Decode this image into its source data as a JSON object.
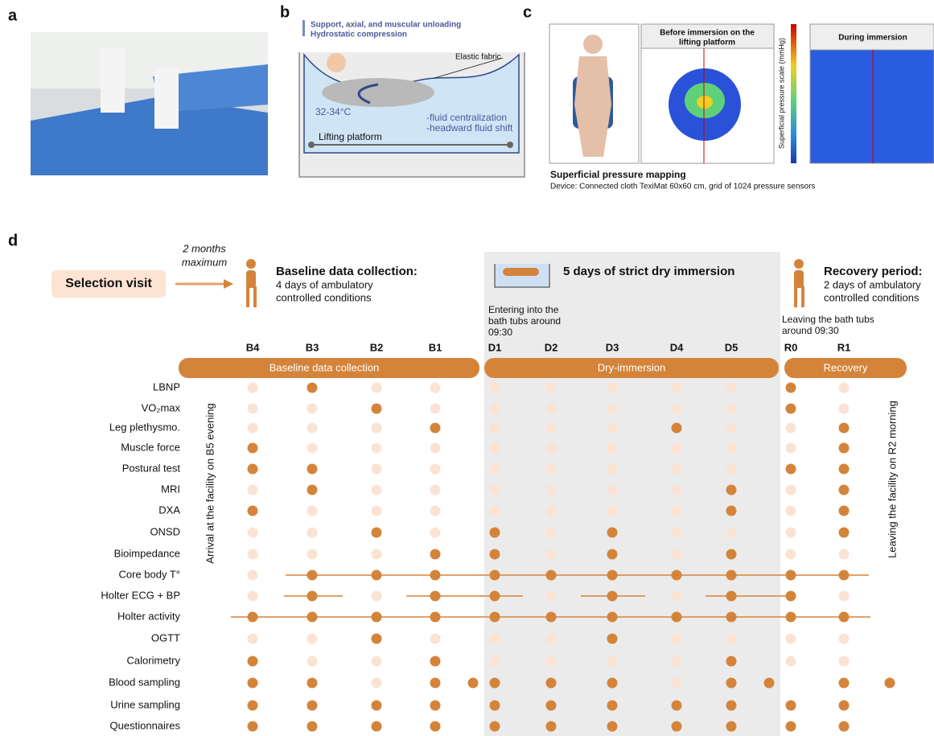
{
  "panels": {
    "a": "a",
    "b": "b",
    "c": "c",
    "d": "d"
  },
  "panel_b": {
    "bullets": [
      "Support, axial, and muscular unloading",
      "Hydrostatic compression"
    ],
    "fabric": "Elastic fabric",
    "temperature": "32-34°C",
    "effects": [
      "-fluid centralization",
      "-headward fluid shift"
    ],
    "platform": "Lifting platform"
  },
  "panel_c": {
    "before": [
      "Before immersion on the",
      "lifting platform"
    ],
    "during": "During immersion",
    "scale": "Superficial pressure scale (mmHg)",
    "caption": "Superficial pressure mapping",
    "device": "Device: Connected cloth TexiMat 60x60 cm, grid of 1024 pressure sensors"
  },
  "panel_d": {
    "selection": "Selection visit",
    "gap": [
      "2 months",
      "maximum"
    ],
    "baseline_title": "Baseline data collection:",
    "baseline_text": [
      "4 days of ambulatory",
      "controlled conditions"
    ],
    "immersion_title": "5 days of strict dry immersion",
    "recovery_title": "Recovery period:",
    "recovery_text": [
      "2 days of ambulatory",
      "controlled conditions"
    ],
    "entering": [
      "Entering into the",
      "bath tubs around",
      "09:30"
    ],
    "leaving": [
      "Leaving the bath tubs",
      "around 09:30"
    ],
    "phases": [
      "Baseline data collection",
      "Dry-immersion",
      "Recovery"
    ],
    "arrival": "Arrival at the facility on B5 evening",
    "departure": "Leaving the facility on R2 morning",
    "days": [
      "B4",
      "B3",
      "B2",
      "B1",
      null,
      "D1",
      "D2",
      "D3",
      "D4",
      "D5",
      null,
      "R0",
      "R1",
      null
    ],
    "rows": [
      {
        "name": "LBNP",
        "values": [
          0,
          1,
          0,
          0,
          null,
          0,
          0,
          0,
          0,
          0,
          null,
          1,
          0,
          null
        ]
      },
      {
        "name": "VO₂max",
        "values": [
          0,
          0,
          1,
          0,
          null,
          0,
          0,
          0,
          0,
          0,
          null,
          1,
          0,
          null
        ]
      },
      {
        "name": "Leg plethysmo.",
        "values": [
          0,
          0,
          0,
          1,
          null,
          0,
          0,
          0,
          1,
          0,
          null,
          0,
          1,
          null
        ]
      },
      {
        "name": "Muscle force",
        "values": [
          1,
          0,
          0,
          0,
          null,
          0,
          0,
          0,
          0,
          0,
          null,
          0,
          1,
          null
        ]
      },
      {
        "name": "Postural test",
        "values": [
          1,
          1,
          0,
          0,
          null,
          0,
          0,
          0,
          0,
          0,
          null,
          1,
          1,
          null
        ]
      },
      {
        "name": "MRI",
        "values": [
          0,
          1,
          0,
          0,
          null,
          0,
          0,
          0,
          0,
          1,
          null,
          0,
          1,
          null
        ]
      },
      {
        "name": "DXA",
        "values": [
          1,
          0,
          0,
          0,
          null,
          0,
          0,
          0,
          0,
          1,
          null,
          0,
          1,
          null
        ]
      },
      {
        "name": "ONSD",
        "values": [
          0,
          0,
          1,
          0,
          null,
          1,
          0,
          1,
          0,
          0,
          null,
          0,
          1,
          null
        ]
      },
      {
        "name": "Bioimpedance",
        "values": [
          0,
          0,
          0,
          1,
          null,
          1,
          0,
          1,
          0,
          1,
          null,
          0,
          0,
          null
        ]
      },
      {
        "name": "Core body T°",
        "values": [
          0,
          1,
          1,
          1,
          null,
          1,
          1,
          1,
          1,
          1,
          null,
          1,
          1,
          null
        ]
      },
      {
        "name": "Holter ECG + BP",
        "values": [
          0,
          1,
          0,
          1,
          null,
          1,
          0,
          1,
          0,
          1,
          null,
          1,
          0,
          null
        ]
      },
      {
        "name": "Holter activity",
        "values": [
          1,
          1,
          1,
          1,
          null,
          1,
          1,
          1,
          1,
          1,
          null,
          1,
          1,
          null
        ]
      },
      {
        "name": "OGTT",
        "values": [
          0,
          0,
          1,
          0,
          null,
          0,
          0,
          1,
          0,
          0,
          null,
          0,
          0,
          null
        ]
      },
      {
        "name": "Calorimetry",
        "values": [
          1,
          0,
          0,
          1,
          null,
          0,
          0,
          0,
          0,
          1,
          null,
          0,
          0,
          null
        ]
      },
      {
        "name": "Blood sampling",
        "values": [
          1,
          1,
          0,
          1,
          1,
          1,
          1,
          1,
          0,
          1,
          1,
          null,
          1,
          1
        ]
      },
      {
        "name": "Urine sampling",
        "values": [
          1,
          1,
          1,
          1,
          null,
          1,
          1,
          1,
          1,
          1,
          null,
          1,
          1,
          null
        ]
      },
      {
        "name": "Questionnaires",
        "values": [
          1,
          1,
          1,
          1,
          null,
          1,
          1,
          1,
          1,
          1,
          null,
          1,
          1,
          null
        ]
      }
    ]
  }
}
